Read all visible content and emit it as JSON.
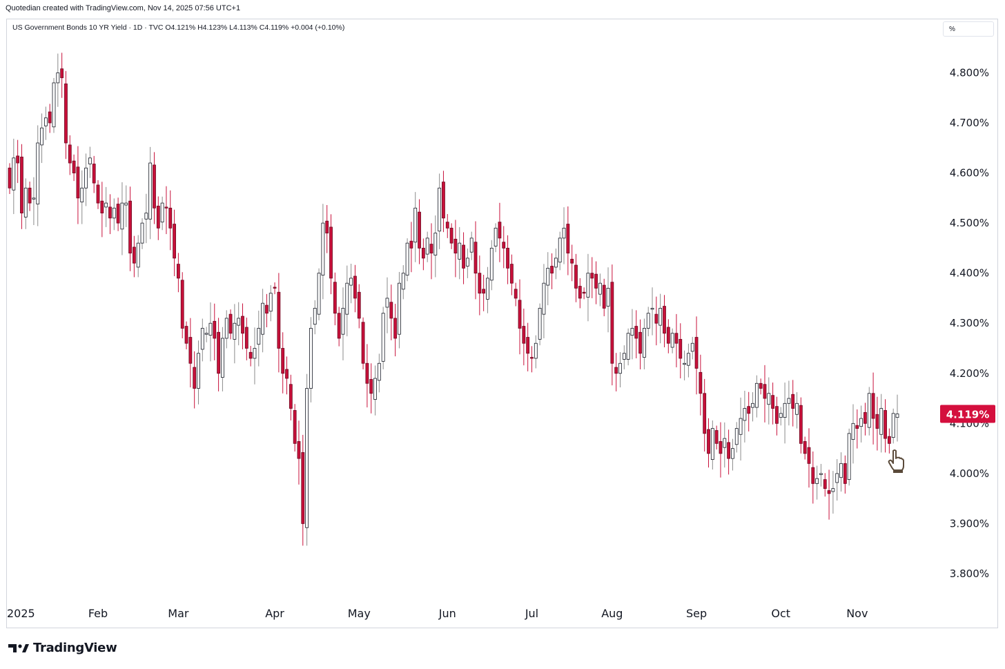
{
  "header": {
    "credit": "Quotedian created with TradingView.com, Nov 14, 2025 07:56 UTC+1",
    "symbol_line": "US Government Bonds 10 YR Yield · 1D · TVC  O4.121%  H4.123%  L4.113%  C4.119%  +0.004 (+0.10%)",
    "unit_label": "%"
  },
  "footer": {
    "brand": "TradingView"
  },
  "colors": {
    "up_fill": "#ffffff",
    "up_stroke": "#131722",
    "down_fill": "#c8103a",
    "down_stroke": "#6b0a20",
    "wick": "#8a8a8a",
    "last_price_bg": "#d40f3d",
    "axis_text": "#131722"
  },
  "icons": [
    "tradingview-logo-icon",
    "hand-cursor-icon"
  ],
  "chart_data": {
    "type": "candlestick",
    "title": "US Government Bonds 10 YR Yield",
    "interval": "1D",
    "source": "TVC",
    "ylim": [
      3.76,
      4.904
    ],
    "yticks": [
      {
        "value": 4.8,
        "label": "4.800%"
      },
      {
        "value": 4.7,
        "label": "4.700%"
      },
      {
        "value": 4.6,
        "label": "4.600%"
      },
      {
        "value": 4.5,
        "label": "4.500%"
      },
      {
        "value": 4.4,
        "label": "4.400%"
      },
      {
        "value": 4.3,
        "label": "4.300%"
      },
      {
        "value": 4.2,
        "label": "4.200%"
      },
      {
        "value": 4.1,
        "label": "4.100%"
      },
      {
        "value": 4.0,
        "label": "4.000%"
      },
      {
        "value": 3.9,
        "label": "3.900%"
      },
      {
        "value": 3.8,
        "label": "3.800%"
      }
    ],
    "xticks": [
      "2025",
      "Feb",
      "Mar",
      "Apr",
      "May",
      "Jun",
      "Jul",
      "Aug",
      "Sep",
      "Oct",
      "Nov"
    ],
    "last_price": {
      "value": 4.119,
      "label": "4.119%"
    },
    "grid": false,
    "ohlc": [
      {
        "month": "2025",
        "close": 4.57
      },
      {
        "month": "Jan",
        "close": 4.63
      },
      {
        "month": "Jan",
        "close": 4.62
      },
      {
        "month": "Jan",
        "close": 4.52
      },
      {
        "month": "Jan",
        "close": 4.57
      },
      {
        "month": "Jan",
        "close": 4.54
      },
      {
        "month": "Jan",
        "close": 4.55
      },
      {
        "month": "Jan",
        "close": 4.66
      },
      {
        "month": "Jan",
        "close": 4.69
      },
      {
        "month": "Jan",
        "close": 4.71
      },
      {
        "month": "Jan",
        "close": 4.7
      },
      {
        "month": "Jan",
        "close": 4.78
      },
      {
        "month": "Jan",
        "close": 4.8
      },
      {
        "month": "Jan",
        "close": 4.79
      },
      {
        "month": "Jan",
        "close": 4.66
      },
      {
        "month": "Jan",
        "close": 4.62
      },
      {
        "month": "Jan",
        "close": 4.6
      },
      {
        "month": "Jan",
        "close": 4.55
      },
      {
        "month": "Jan",
        "close": 4.57
      },
      {
        "month": "Jan",
        "close": 4.61
      },
      {
        "month": "Jan",
        "close": 4.63
      },
      {
        "month": "Jan",
        "close": 4.58
      },
      {
        "month": "Feb",
        "close": 4.54
      },
      {
        "month": "Feb",
        "close": 4.52
      },
      {
        "month": "Feb",
        "close": 4.54
      },
      {
        "month": "Feb",
        "close": 4.51
      },
      {
        "month": "Feb",
        "close": 4.53
      },
      {
        "month": "Feb",
        "close": 4.5
      },
      {
        "month": "Feb",
        "close": 4.54
      },
      {
        "month": "Feb",
        "close": 4.54
      },
      {
        "month": "Feb",
        "close": 4.44
      },
      {
        "month": "Feb",
        "close": 4.42
      },
      {
        "month": "Feb",
        "close": 4.46
      },
      {
        "month": "Feb",
        "close": 4.5
      },
      {
        "month": "Feb",
        "close": 4.52
      },
      {
        "month": "Feb",
        "close": 4.62
      },
      {
        "month": "Feb",
        "close": 4.53
      },
      {
        "month": "Feb",
        "close": 4.49
      },
      {
        "month": "Feb",
        "close": 4.54
      },
      {
        "month": "Feb",
        "close": 4.53
      },
      {
        "month": "Feb",
        "close": 4.49
      },
      {
        "month": "Feb",
        "close": 4.43
      },
      {
        "month": "Mar",
        "close": 4.39
      },
      {
        "month": "Mar",
        "close": 4.29
      },
      {
        "month": "Mar",
        "close": 4.26
      },
      {
        "month": "Mar",
        "close": 4.22
      },
      {
        "month": "Mar",
        "close": 4.17
      },
      {
        "month": "Mar",
        "close": 4.24
      },
      {
        "month": "Mar",
        "close": 4.29
      },
      {
        "month": "Mar",
        "close": 4.28
      },
      {
        "month": "Mar",
        "close": 4.3
      },
      {
        "month": "Mar",
        "close": 4.27
      },
      {
        "month": "Mar",
        "close": 4.2
      },
      {
        "month": "Mar",
        "close": 4.27
      },
      {
        "month": "Mar",
        "close": 4.31
      },
      {
        "month": "Mar",
        "close": 4.28
      },
      {
        "month": "Mar",
        "close": 4.3
      },
      {
        "month": "Mar",
        "close": 4.31
      },
      {
        "month": "Mar",
        "close": 4.28
      },
      {
        "month": "Mar",
        "close": 4.25
      },
      {
        "month": "Mar",
        "close": 4.23
      },
      {
        "month": "Mar",
        "close": 4.25
      },
      {
        "month": "Mar",
        "close": 4.29
      },
      {
        "month": "Mar",
        "close": 4.34
      },
      {
        "month": "Mar",
        "close": 4.32
      },
      {
        "month": "Mar",
        "close": 4.36
      },
      {
        "month": "Apr",
        "close": 4.37
      },
      {
        "month": "Apr",
        "close": 4.25
      },
      {
        "month": "Apr",
        "close": 4.2
      },
      {
        "month": "Apr",
        "close": 4.19
      },
      {
        "month": "Apr",
        "close": 4.13
      },
      {
        "month": "Apr",
        "close": 4.06
      },
      {
        "month": "Apr",
        "close": 4.03
      },
      {
        "month": "Apr",
        "close": 3.9
      },
      {
        "month": "Apr",
        "close": 4.17
      },
      {
        "month": "Apr",
        "close": 4.29
      },
      {
        "month": "Apr",
        "close": 4.33
      },
      {
        "month": "Apr",
        "close": 4.4
      },
      {
        "month": "Apr",
        "close": 4.5
      },
      {
        "month": "Apr",
        "close": 4.48
      },
      {
        "month": "Apr",
        "close": 4.39
      },
      {
        "month": "Apr",
        "close": 4.32
      },
      {
        "month": "Apr",
        "close": 4.27
      },
      {
        "month": "Apr",
        "close": 4.33
      },
      {
        "month": "Apr",
        "close": 4.38
      },
      {
        "month": "Apr",
        "close": 4.39
      },
      {
        "month": "Apr",
        "close": 4.35
      },
      {
        "month": "May",
        "close": 4.31
      },
      {
        "month": "May",
        "close": 4.22
      },
      {
        "month": "May",
        "close": 4.18
      },
      {
        "month": "May",
        "close": 4.16
      },
      {
        "month": "May",
        "close": 4.19
      },
      {
        "month": "May",
        "close": 4.22
      },
      {
        "month": "May",
        "close": 4.32
      },
      {
        "month": "May",
        "close": 4.35
      },
      {
        "month": "May",
        "close": 4.31
      },
      {
        "month": "May",
        "close": 4.27
      },
      {
        "month": "May",
        "close": 4.38
      },
      {
        "month": "May",
        "close": 4.4
      },
      {
        "month": "May",
        "close": 4.46
      },
      {
        "month": "May",
        "close": 4.45
      },
      {
        "month": "May",
        "close": 4.53
      },
      {
        "month": "May",
        "close": 4.45
      },
      {
        "month": "May",
        "close": 4.43
      },
      {
        "month": "May",
        "close": 4.47
      },
      {
        "month": "May",
        "close": 4.44
      },
      {
        "month": "May",
        "close": 4.48
      },
      {
        "month": "May",
        "close": 4.57
      },
      {
        "month": "May",
        "close": 4.51
      },
      {
        "month": "Jun",
        "close": 4.49
      },
      {
        "month": "Jun",
        "close": 4.46
      },
      {
        "month": "Jun",
        "close": 4.44
      },
      {
        "month": "Jun",
        "close": 4.46
      },
      {
        "month": "Jun",
        "close": 4.41
      },
      {
        "month": "Jun",
        "close": 4.43
      },
      {
        "month": "Jun",
        "close": 4.47
      },
      {
        "month": "Jun",
        "close": 4.4
      },
      {
        "month": "Jun",
        "close": 4.36
      },
      {
        "month": "Jun",
        "close": 4.36
      },
      {
        "month": "Jun",
        "close": 4.39
      },
      {
        "month": "Jun",
        "close": 4.45
      },
      {
        "month": "Jun",
        "close": 4.49
      },
      {
        "month": "Jun",
        "close": 4.47
      },
      {
        "month": "Jun",
        "close": 4.45
      },
      {
        "month": "Jun",
        "close": 4.41
      },
      {
        "month": "Jun",
        "close": 4.38
      },
      {
        "month": "Jun",
        "close": 4.35
      },
      {
        "month": "Jun",
        "close": 4.29
      },
      {
        "month": "Jun",
        "close": 4.26
      },
      {
        "month": "Jun",
        "close": 4.24
      },
      {
        "month": "Jul",
        "close": 4.23
      },
      {
        "month": "Jul",
        "close": 4.26
      },
      {
        "month": "Jul",
        "close": 4.33
      },
      {
        "month": "Jul",
        "close": 4.38
      },
      {
        "month": "Jul",
        "close": 4.41
      },
      {
        "month": "Jul",
        "close": 4.4
      },
      {
        "month": "Jul",
        "close": 4.43
      },
      {
        "month": "Jul",
        "close": 4.47
      },
      {
        "month": "Jul",
        "close": 4.49
      },
      {
        "month": "Jul",
        "close": 4.44
      },
      {
        "month": "Jul",
        "close": 4.42
      },
      {
        "month": "Jul",
        "close": 4.37
      },
      {
        "month": "Jul",
        "close": 4.35
      },
      {
        "month": "Jul",
        "close": 4.36
      },
      {
        "month": "Jul",
        "close": 4.4
      },
      {
        "month": "Jul",
        "close": 4.39
      },
      {
        "month": "Jul",
        "close": 4.37
      },
      {
        "month": "Jul",
        "close": 4.38
      },
      {
        "month": "Jul",
        "close": 4.33
      },
      {
        "month": "Jul",
        "close": 4.37
      },
      {
        "month": "Aug",
        "close": 4.22
      },
      {
        "month": "Aug",
        "close": 4.2
      },
      {
        "month": "Aug",
        "close": 4.22
      },
      {
        "month": "Aug",
        "close": 4.24
      },
      {
        "month": "Aug",
        "close": 4.28
      },
      {
        "month": "Aug",
        "close": 4.29
      },
      {
        "month": "Aug",
        "close": 4.27
      },
      {
        "month": "Aug",
        "close": 4.24
      },
      {
        "month": "Aug",
        "close": 4.29
      },
      {
        "month": "Aug",
        "close": 4.32
      },
      {
        "month": "Aug",
        "close": 4.33
      },
      {
        "month": "Aug",
        "close": 4.3
      },
      {
        "month": "Aug",
        "close": 4.33
      },
      {
        "month": "Aug",
        "close": 4.28
      },
      {
        "month": "Aug",
        "close": 4.26
      },
      {
        "month": "Aug",
        "close": 4.28
      },
      {
        "month": "Aug",
        "close": 4.26
      },
      {
        "month": "Aug",
        "close": 4.23
      },
      {
        "month": "Aug",
        "close": 4.22
      },
      {
        "month": "Aug",
        "close": 4.24
      },
      {
        "month": "Aug",
        "close": 4.26
      },
      {
        "month": "Sep",
        "close": 4.21
      },
      {
        "month": "Sep",
        "close": 4.16
      },
      {
        "month": "Sep",
        "close": 4.08
      },
      {
        "month": "Sep",
        "close": 4.04
      },
      {
        "month": "Sep",
        "close": 4.09
      },
      {
        "month": "Sep",
        "close": 4.06
      },
      {
        "month": "Sep",
        "close": 4.04
      },
      {
        "month": "Sep",
        "close": 4.07
      },
      {
        "month": "Sep",
        "close": 4.03
      },
      {
        "month": "Sep",
        "close": 4.05
      },
      {
        "month": "Sep",
        "close": 4.09
      },
      {
        "month": "Sep",
        "close": 4.11
      },
      {
        "month": "Sep",
        "close": 4.13
      },
      {
        "month": "Sep",
        "close": 4.12
      },
      {
        "month": "Sep",
        "close": 4.14
      },
      {
        "month": "Sep",
        "close": 4.18
      },
      {
        "month": "Sep",
        "close": 4.17
      },
      {
        "month": "Sep",
        "close": 4.15
      },
      {
        "month": "Sep",
        "close": 4.16
      },
      {
        "month": "Sep",
        "close": 4.13
      },
      {
        "month": "Sep",
        "close": 4.1
      },
      {
        "month": "Oct",
        "close": 4.12
      },
      {
        "month": "Oct",
        "close": 4.14
      },
      {
        "month": "Oct",
        "close": 4.15
      },
      {
        "month": "Oct",
        "close": 4.13
      },
      {
        "month": "Oct",
        "close": 4.14
      },
      {
        "month": "Oct",
        "close": 4.06
      },
      {
        "month": "Oct",
        "close": 4.04
      },
      {
        "month": "Oct",
        "close": 4.02
      },
      {
        "month": "Oct",
        "close": 3.98
      },
      {
        "month": "Oct",
        "close": 3.99
      },
      {
        "month": "Oct",
        "close": 4.0
      },
      {
        "month": "Oct",
        "close": 3.97
      },
      {
        "month": "Oct",
        "close": 3.96
      },
      {
        "month": "Oct",
        "close": 3.97
      },
      {
        "month": "Oct",
        "close": 4.0
      },
      {
        "month": "Oct",
        "close": 4.02
      },
      {
        "month": "Oct",
        "close": 3.98
      },
      {
        "month": "Oct",
        "close": 4.08
      },
      {
        "month": "Oct",
        "close": 4.1
      },
      {
        "month": "Nov",
        "close": 4.09
      },
      {
        "month": "Nov",
        "close": 4.11
      },
      {
        "month": "Nov",
        "close": 4.1
      },
      {
        "month": "Nov",
        "close": 4.16
      },
      {
        "month": "Nov",
        "close": 4.11
      },
      {
        "month": "Nov",
        "close": 4.09
      },
      {
        "month": "Nov",
        "close": 4.13
      },
      {
        "month": "Nov",
        "close": 4.07
      },
      {
        "month": "Nov",
        "close": 4.06
      },
      {
        "month": "Nov",
        "close": 4.12
      },
      {
        "month": "Nov",
        "close": 4.119
      }
    ]
  }
}
